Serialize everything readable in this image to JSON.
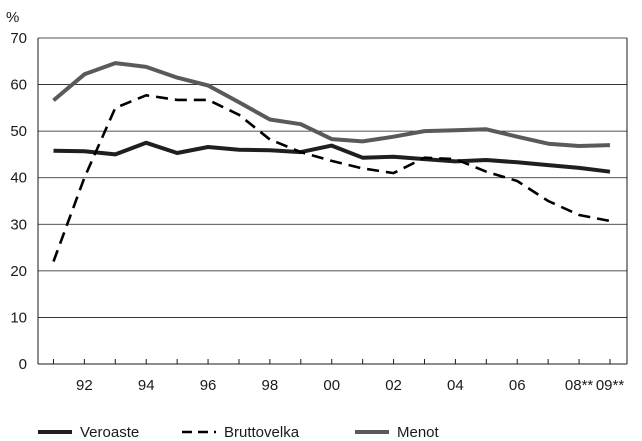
{
  "chart_data": {
    "type": "line",
    "ylabel": "%",
    "ylim": [
      0,
      70
    ],
    "yticks": [
      0,
      10,
      20,
      30,
      40,
      50,
      60,
      70
    ],
    "x": [
      1991,
      1992,
      1993,
      1994,
      1995,
      1996,
      1997,
      1998,
      1999,
      2000,
      2001,
      2002,
      2003,
      2004,
      2005,
      2006,
      2007,
      2008,
      2009
    ],
    "xtick_positions": [
      1992,
      1994,
      1996,
      1998,
      2000,
      2002,
      2004,
      2006,
      2008,
      2009
    ],
    "xtick_labels": [
      "92",
      "94",
      "96",
      "98",
      "00",
      "02",
      "04",
      "06",
      "08**",
      "09**"
    ],
    "grid": "horizontal",
    "legend_position": "bottom",
    "series": [
      {
        "name": "Veroaste",
        "style": "solid",
        "color": "#1f1f1f",
        "values": [
          45.8,
          45.7,
          45.0,
          47.5,
          45.3,
          46.6,
          46.0,
          45.9,
          45.5,
          46.9,
          44.3,
          44.5,
          44.0,
          43.5,
          43.8,
          43.3,
          42.7,
          42.1,
          41.3
        ]
      },
      {
        "name": "Bruttovelka",
        "style": "dashed",
        "color": "#000000",
        "values": [
          22.0,
          40.0,
          55.0,
          57.7,
          56.7,
          56.7,
          53.5,
          48.2,
          45.5,
          43.6,
          42.0,
          41.0,
          44.3,
          44.0,
          41.3,
          39.3,
          35.0,
          32.0,
          30.7
        ]
      },
      {
        "name": "Menot",
        "style": "solid",
        "color": "#5a5a5a",
        "values": [
          56.6,
          62.2,
          64.6,
          63.8,
          61.5,
          59.8,
          56.2,
          52.5,
          51.5,
          48.3,
          47.8,
          48.8,
          50.0,
          50.2,
          50.4,
          48.8,
          47.3,
          46.8,
          47.0
        ]
      }
    ]
  }
}
